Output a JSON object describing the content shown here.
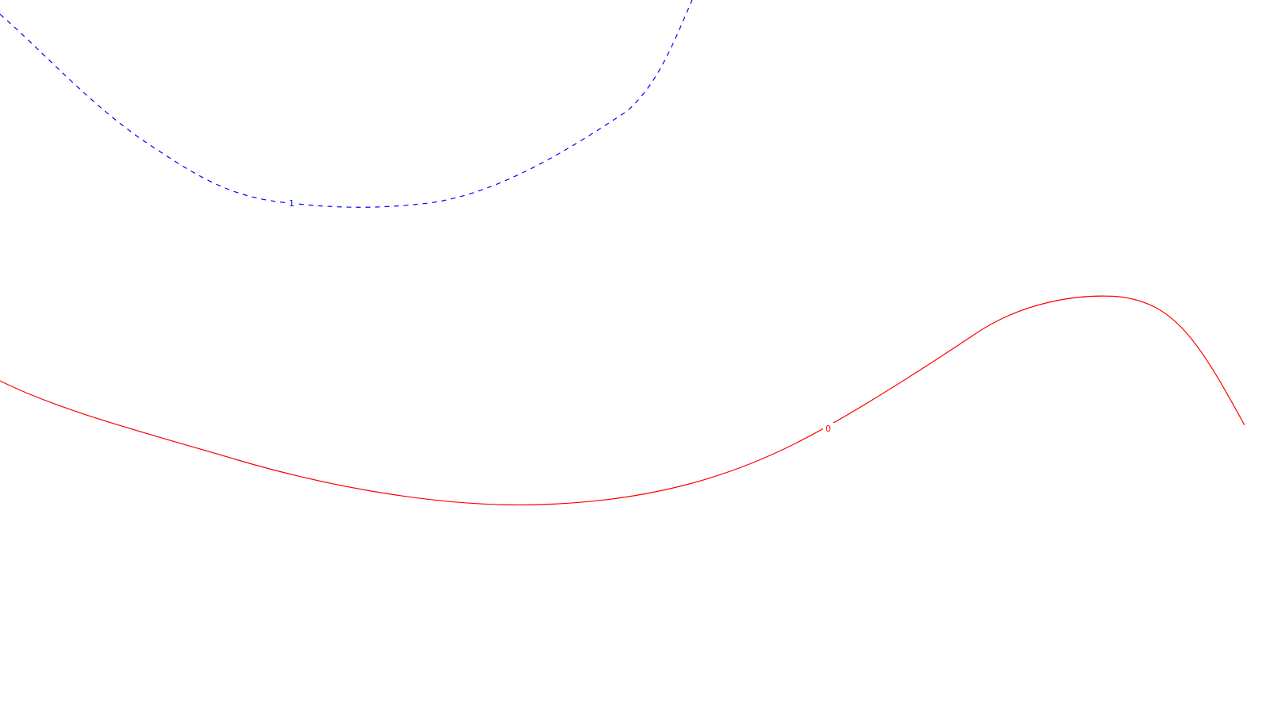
{
  "contours": [
    {
      "level_label": "1",
      "color": "#0000ff",
      "line_style": "dashed"
    },
    {
      "level_label": "0",
      "color": "#ff0000",
      "line_style": "solid"
    }
  ]
}
